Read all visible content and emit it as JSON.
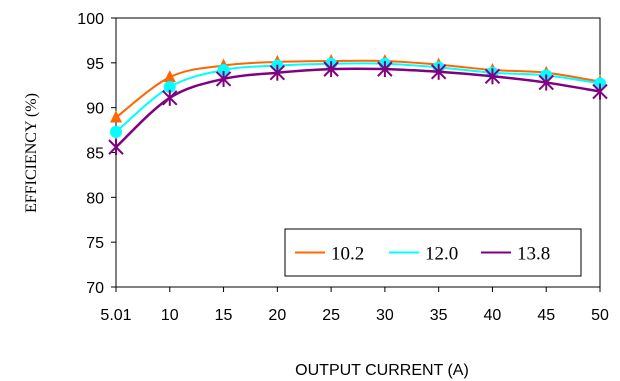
{
  "chart_data": {
    "type": "line",
    "xlabel": "OUTPUT CURRENT (A)",
    "ylabel": "EFFICIENCY (%)",
    "x": [
      5.01,
      10,
      15,
      20,
      25,
      30,
      35,
      40,
      45,
      50
    ],
    "x_tick_labels": [
      "5.01",
      "10",
      "15",
      "20",
      "25",
      "30",
      "35",
      "40",
      "45",
      "50"
    ],
    "y_ticks": [
      70,
      75,
      80,
      85,
      90,
      95,
      100
    ],
    "y_tick_labels": [
      "70",
      "75",
      "80",
      "85",
      "90",
      "95",
      "100"
    ],
    "ylim": [
      70,
      100
    ],
    "grid": false,
    "legend_position": "bottom-right",
    "series": [
      {
        "name": "10.2",
        "color": "#FF6600",
        "marker": "triangle",
        "values": [
          88.9,
          93.4,
          94.7,
          95.1,
          95.2,
          95.2,
          94.8,
          94.2,
          93.9,
          92.9
        ]
      },
      {
        "name": "12.0",
        "color": "#00FFFF",
        "marker": "circle",
        "values": [
          87.3,
          92.3,
          94.2,
          94.7,
          94.9,
          94.9,
          94.5,
          93.9,
          93.6,
          92.7
        ]
      },
      {
        "name": "13.8",
        "color": "#800080",
        "marker": "x-star",
        "values": [
          85.6,
          91.1,
          93.2,
          93.9,
          94.3,
          94.3,
          94.0,
          93.5,
          92.8,
          91.8
        ]
      }
    ]
  }
}
